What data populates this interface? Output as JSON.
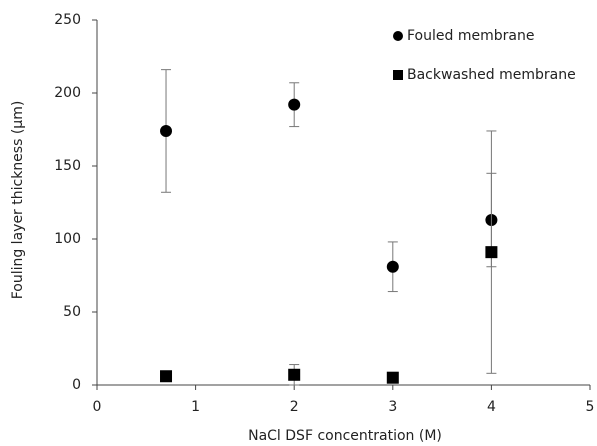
{
  "chart_data": {
    "type": "scatter",
    "x_label": "NaCl DSF concentration (M)",
    "y_label": "Fouling layer thickness (µm)",
    "series": [
      {
        "name": "Fouled membrane",
        "marker": "circle",
        "color": "#000000",
        "x": [
          0.7,
          2,
          3,
          4
        ],
        "values": [
          174,
          192,
          81,
          113
        ],
        "errors": [
          42,
          15,
          17,
          32
        ]
      },
      {
        "name": "Backwashed membrane",
        "marker": "square",
        "color": "#000000",
        "x": [
          0.7,
          2,
          3,
          4
        ],
        "values": [
          6,
          7,
          5,
          91
        ],
        "errors": [
          0,
          7,
          3,
          83
        ]
      }
    ],
    "xlim": [
      0,
      5
    ],
    "xticks": [
      0,
      1,
      2,
      3,
      4,
      5
    ],
    "ylim": [
      0,
      250
    ],
    "yticks": [
      0,
      50,
      100,
      150,
      200,
      250
    ],
    "grid": false,
    "legend": "top-right"
  }
}
